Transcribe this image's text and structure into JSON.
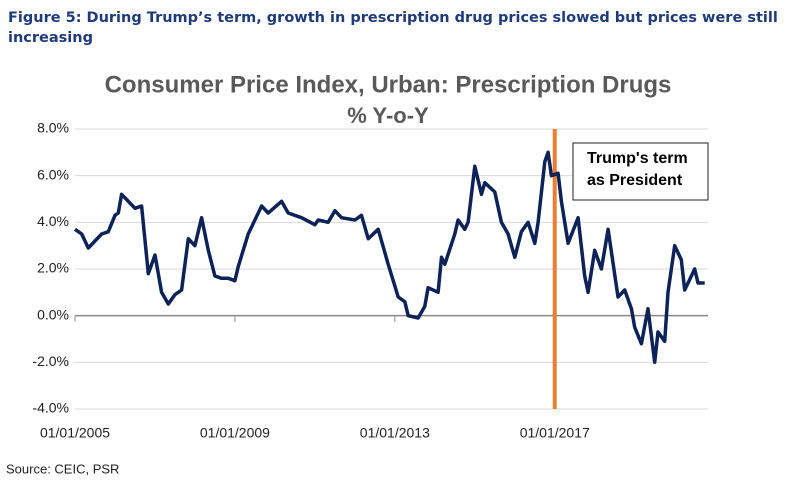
{
  "chart_data": {
    "type": "line",
    "caption": "Figure 5: During Trump’s term, growth in prescription drug prices slowed but prices were still increasing",
    "title": "Consumer Price Index, Urban: Prescription Drugs",
    "subtitle": "% Y-o-Y",
    "source": "Source: CEIC, PSR",
    "x": [
      "2005-01",
      "2005-03",
      "2005-05",
      "2005-07",
      "2005-09",
      "2005-11",
      "2006-01",
      "2006-02",
      "2006-03",
      "2006-07",
      "2006-09",
      "2006-11",
      "2007-01",
      "2007-03",
      "2007-05",
      "2007-07",
      "2007-09",
      "2007-11",
      "2008-01",
      "2008-03",
      "2008-05",
      "2008-07",
      "2008-09",
      "2008-11",
      "2009-01",
      "2009-02",
      "2009-05",
      "2009-09",
      "2009-11",
      "2010-03",
      "2010-05",
      "2010-09",
      "2011-01",
      "2011-02",
      "2011-05",
      "2011-07",
      "2011-09",
      "2012-01",
      "2012-03",
      "2012-05",
      "2012-08",
      "2012-11",
      "2013-02",
      "2013-04",
      "2013-05",
      "2013-08",
      "2013-10",
      "2013-11",
      "2014-02",
      "2014-03",
      "2014-04",
      "2014-07",
      "2014-08",
      "2014-10",
      "2014-11",
      "2015-01",
      "2015-03",
      "2015-04",
      "2015-07",
      "2015-09",
      "2015-11",
      "2016-01",
      "2016-03",
      "2016-05",
      "2016-07",
      "2016-08",
      "2016-10",
      "2016-11",
      "2016-12",
      "2017-02",
      "2017-03",
      "2017-05",
      "2017-08",
      "2017-10",
      "2017-11",
      "2018-01",
      "2018-03",
      "2018-05",
      "2018-08",
      "2018-10",
      "2018-12",
      "2019-01",
      "2019-03",
      "2019-05",
      "2019-07",
      "2019-08",
      "2019-10",
      "2019-11",
      "2020-01",
      "2020-03",
      "2020-04",
      "2020-07",
      "2020-08",
      "2020-10"
    ],
    "series": [
      {
        "name": "CPI Urban: Prescription Drugs % Y-o-Y",
        "color": "#0d2257",
        "values": [
          3.7,
          3.5,
          2.9,
          3.2,
          3.5,
          3.6,
          4.3,
          4.4,
          5.2,
          4.6,
          4.7,
          1.8,
          2.6,
          1.0,
          0.5,
          0.9,
          1.1,
          3.3,
          3.0,
          4.2,
          2.8,
          1.7,
          1.6,
          1.6,
          1.5,
          2.1,
          3.5,
          4.7,
          4.4,
          4.9,
          4.4,
          4.2,
          3.9,
          4.1,
          4.0,
          4.5,
          4.2,
          4.1,
          4.3,
          3.3,
          3.7,
          2.2,
          0.8,
          0.6,
          0.0,
          -0.1,
          0.4,
          1.2,
          1.0,
          2.5,
          2.2,
          3.5,
          4.1,
          3.7,
          4.0,
          6.4,
          5.2,
          5.7,
          5.3,
          4.0,
          3.5,
          2.5,
          3.6,
          4.0,
          3.1,
          4.0,
          6.6,
          7.0,
          6.0,
          6.1,
          4.9,
          3.1,
          4.2,
          1.7,
          1.0,
          2.8,
          2.0,
          3.7,
          0.8,
          1.1,
          0.3,
          -0.5,
          -1.2,
          0.3,
          -2.0,
          -0.7,
          -1.1,
          1.0,
          3.0,
          2.4,
          1.1,
          2.0,
          1.4,
          1.4
        ]
      }
    ],
    "xlim": [
      "2005-01",
      "2020-11"
    ],
    "xticks": [
      {
        "value": "2005-01",
        "label": "01/01/2005"
      },
      {
        "value": "2009-01",
        "label": "01/01/2009"
      },
      {
        "value": "2013-01",
        "label": "01/01/2013"
      },
      {
        "value": "2017-01",
        "label": "01/01/2017"
      }
    ],
    "ylim": [
      -4,
      8
    ],
    "yticks": [
      {
        "value": -4,
        "label": "-4.0%"
      },
      {
        "value": -2,
        "label": "-2.0%"
      },
      {
        "value": 0,
        "label": "0.0%"
      },
      {
        "value": 2,
        "label": "2.0%"
      },
      {
        "value": 4,
        "label": "4.0%"
      },
      {
        "value": 6,
        "label": "6.0%"
      },
      {
        "value": 8,
        "label": "8.0%"
      }
    ],
    "grid": true,
    "vline": {
      "x": "2017-01",
      "color": "#ed7d31"
    },
    "annotation": [
      "Trump's term",
      "as President"
    ]
  }
}
